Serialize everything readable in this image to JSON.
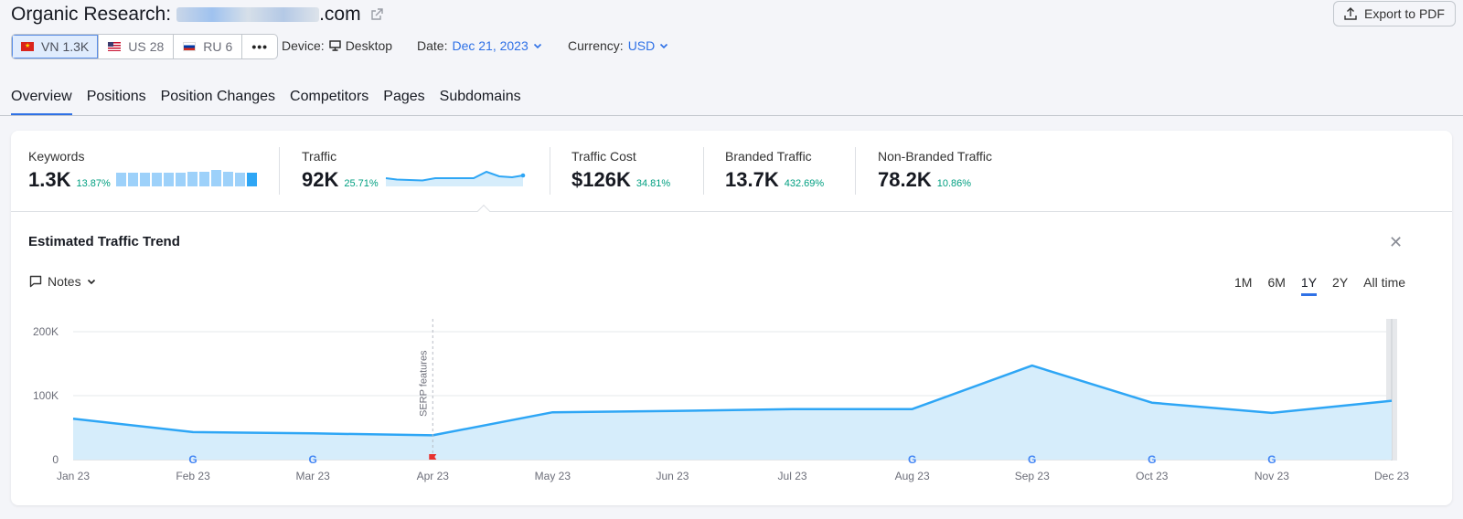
{
  "header": {
    "title_prefix": "Organic Research:",
    "domain_suffix": ".com",
    "export_label": "Export to PDF"
  },
  "databases": [
    {
      "code": "VN",
      "count": "1.3K",
      "active": true
    },
    {
      "code": "US",
      "count": "28",
      "active": false
    },
    {
      "code": "RU",
      "count": "6",
      "active": false
    }
  ],
  "more_label": "•••",
  "filters": {
    "device_label": "Device:",
    "device_value": "Desktop",
    "date_label": "Date:",
    "date_value": "Dec 21, 2023",
    "currency_label": "Currency:",
    "currency_value": "USD"
  },
  "tabs": [
    "Overview",
    "Positions",
    "Position Changes",
    "Competitors",
    "Pages",
    "Subdomains"
  ],
  "metrics": {
    "keywords": {
      "label": "Keywords",
      "value": "1.3K",
      "change": "13.87%"
    },
    "traffic": {
      "label": "Traffic",
      "value": "92K",
      "change": "25.71%"
    },
    "traffic_cost": {
      "label": "Traffic Cost",
      "value": "$126K",
      "change": "34.81%"
    },
    "branded": {
      "label": "Branded Traffic",
      "value": "13.7K",
      "change": "432.69%"
    },
    "non_branded": {
      "label": "Non-Branded Traffic",
      "value": "78.2K",
      "change": "10.86%"
    }
  },
  "trend": {
    "title": "Estimated Traffic Trend",
    "notes_label": "Notes",
    "ranges": [
      "1M",
      "6M",
      "1Y",
      "2Y",
      "All time"
    ],
    "active_range": "1Y",
    "annotation": "SERP features"
  },
  "colors": {
    "accent": "#2f71e6",
    "line": "#2ea6f5",
    "fill": "#d6edfb",
    "positive": "#009f81"
  },
  "chart_data": {
    "type": "area",
    "x": [
      "Jan 23",
      "Feb 23",
      "Mar 23",
      "Apr 23",
      "May 23",
      "Jun 23",
      "Jul 23",
      "Aug 23",
      "Sep 23",
      "Oct 23",
      "Nov 23",
      "Dec 23"
    ],
    "series": [
      {
        "values": [
          64000,
          43000,
          41000,
          38000,
          74000,
          76000,
          79000,
          79000,
          147000,
          89000,
          73000,
          92000
        ]
      }
    ],
    "yticks": [
      "0",
      "100K",
      "200K"
    ],
    "ylim": [
      0,
      200000
    ],
    "grid": true,
    "google_update_markers": [
      "Feb 23",
      "Mar 23",
      "Aug 23",
      "Sep 23",
      "Oct 23",
      "Nov 23"
    ],
    "note_marker": "Apr 23"
  }
}
